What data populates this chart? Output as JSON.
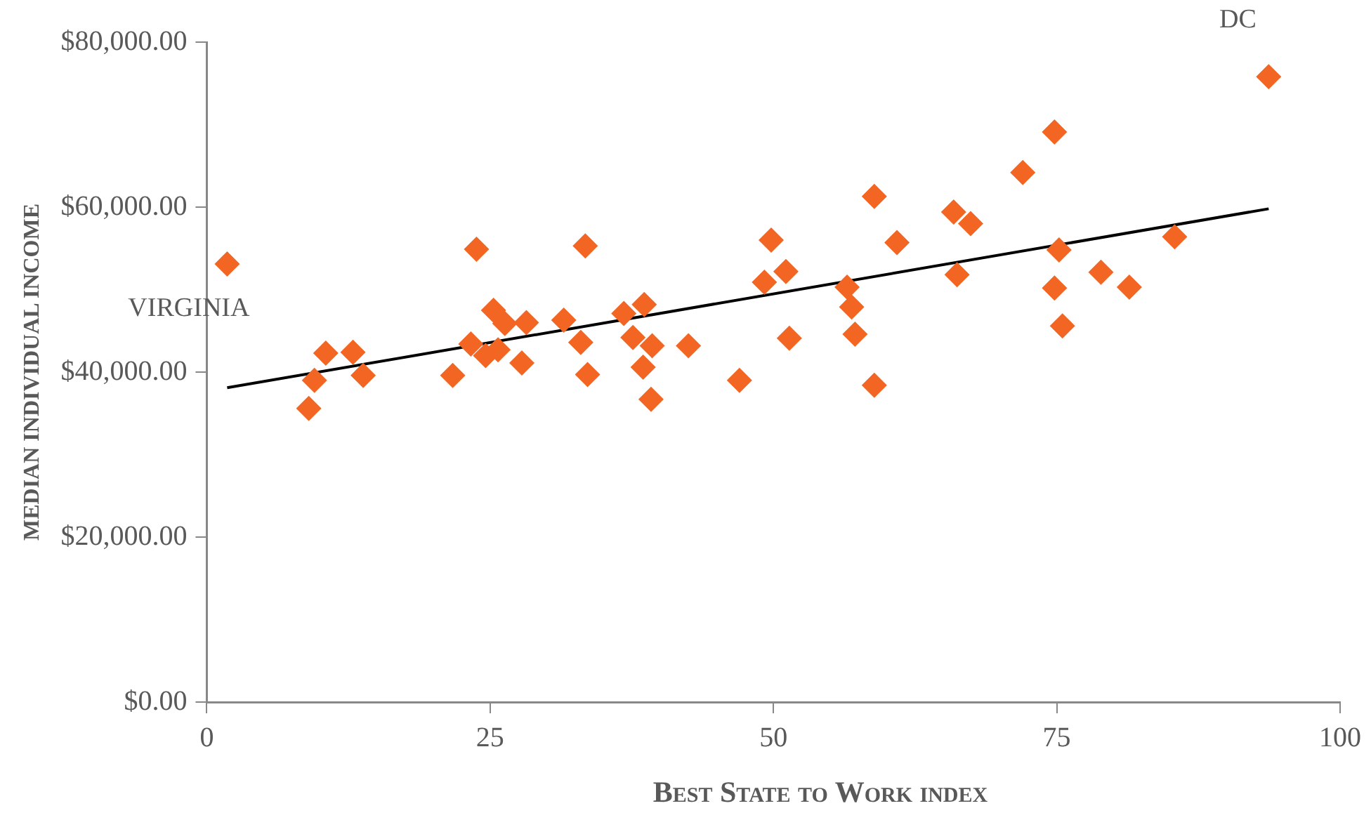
{
  "chart_data": {
    "type": "scatter",
    "xlabel": "Best State to Work index",
    "ylabel": "MEDIAN INDIVIDUAL INCOME",
    "xlim": [
      0,
      100
    ],
    "xticks": [
      0,
      25,
      50,
      75,
      100
    ],
    "ylim": [
      0,
      80000
    ],
    "yticks": [
      {
        "value": 0,
        "label": "$0.00"
      },
      {
        "value": 20000,
        "label": "$20,000.00"
      },
      {
        "value": 40000,
        "label": "$40,000.00"
      },
      {
        "value": 60000,
        "label": "$60,000.00"
      },
      {
        "value": 80000,
        "label": "$80,000.00"
      }
    ],
    "grid": false,
    "legend": false,
    "marker": "diamond",
    "series": [
      {
        "color": "#f26522",
        "x": [
          1.8,
          23.8,
          33.4,
          49.8,
          9.0,
          9.5,
          10.5,
          12.9,
          13.8,
          21.7,
          23.3,
          24.6,
          25.3,
          25.7,
          26.3,
          27.8,
          28.2,
          31.5,
          33.0,
          33.6,
          36.8,
          37.6,
          38.6,
          38.5,
          39.3,
          39.2,
          42.5,
          47.0,
          48.6,
          49.2,
          93.7,
          74.8,
          72.0,
          58.9,
          65.9,
          67.4,
          60.9,
          85.4,
          75.2,
          51.1,
          66.2,
          78.9,
          81.4,
          74.8,
          56.5,
          56.9,
          51.4,
          57.2,
          75.5,
          58.9
        ],
        "values": [
          53100,
          54900,
          55300,
          56000,
          35600,
          39000,
          42300,
          42400,
          39600,
          39600,
          43400,
          42000,
          47500,
          42700,
          45900,
          41100,
          46000,
          46300,
          43600,
          39700,
          47100,
          44200,
          48200,
          40600,
          43200,
          36700,
          43200,
          39000,
          null,
          50900,
          75800,
          69100,
          64200,
          61300,
          59400,
          58000,
          55700,
          56400,
          54800,
          52200,
          51800,
          52100,
          50300,
          50200,
          50300,
          47900,
          44100,
          44600,
          45600,
          38400
        ]
      },
      {
        "type": "line",
        "color": "#000000",
        "marker": "none",
        "line_style": "solid",
        "x": [
          1.8,
          93.7
        ],
        "values": [
          38100,
          59800
        ]
      }
    ],
    "annotations": [
      {
        "text": "VIRGINIA",
        "x": 1.8,
        "y": 53100
      },
      {
        "text": "DC",
        "x": 93.7,
        "y": 75800
      }
    ]
  }
}
